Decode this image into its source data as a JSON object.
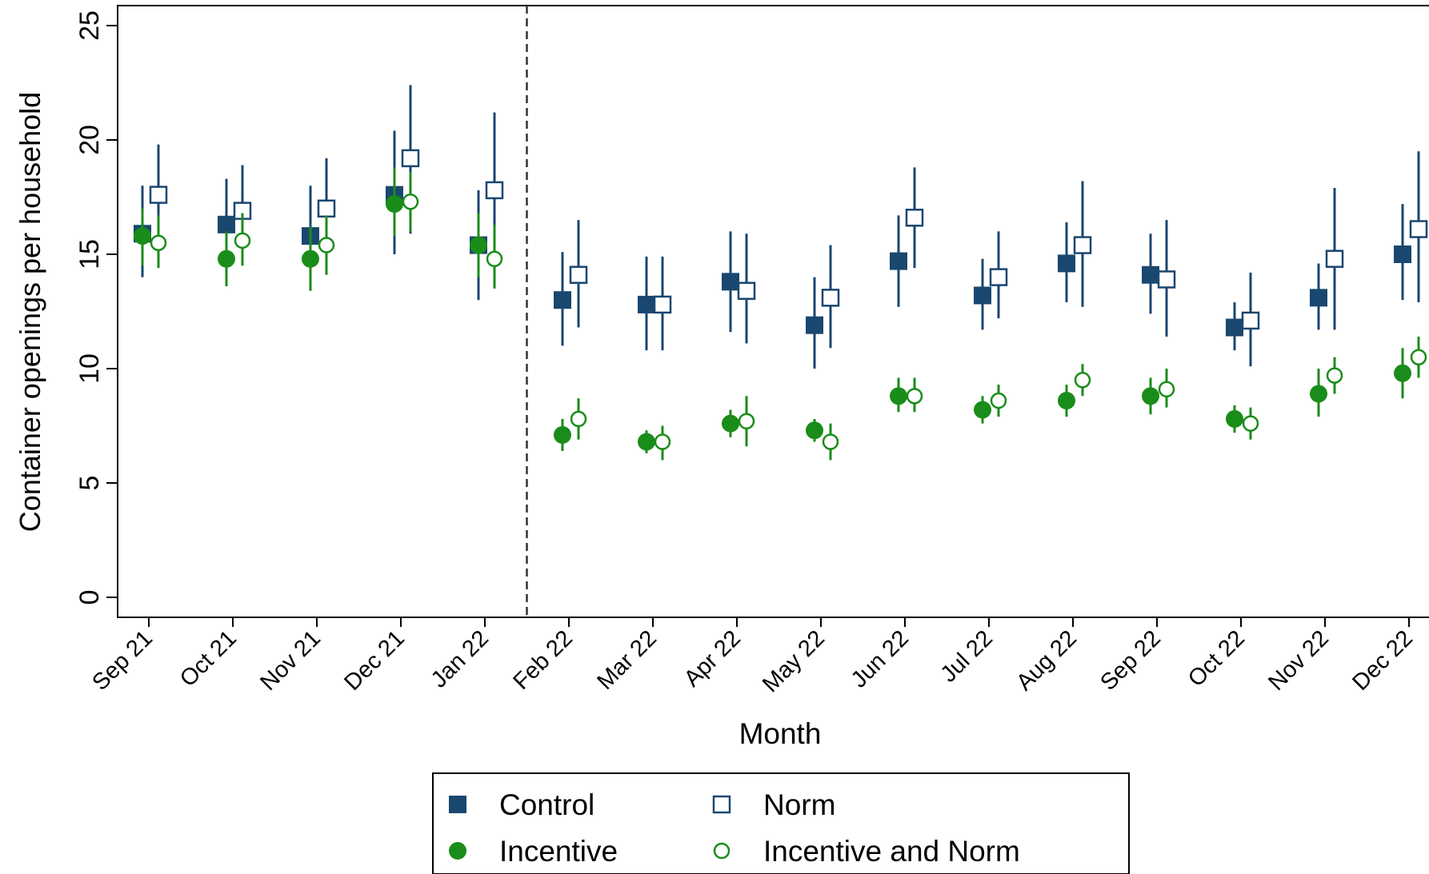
{
  "chart_data": {
    "type": "scatter",
    "title": "",
    "xlabel": "Month",
    "ylabel": "Container openings per household",
    "ylim": [
      0,
      25
    ],
    "yticks": [
      0,
      5,
      10,
      15,
      20,
      25
    ],
    "grid": false,
    "legend_position": "bottom",
    "reference_line": {
      "after_category": "Jan 22",
      "style": "dashed"
    },
    "categories": [
      "Sep 21",
      "Oct 21",
      "Nov 21",
      "Dec 21",
      "Jan 22",
      "Feb 22",
      "Mar 22",
      "Apr 22",
      "May 22",
      "Jun 22",
      "Jul 22",
      "Aug 22",
      "Sep 22",
      "Oct 22",
      "Nov 22",
      "Dec 22"
    ],
    "series": [
      {
        "name": "Control",
        "marker": "filled-square",
        "color": "#1a476f",
        "values": [
          15.9,
          16.3,
          15.8,
          17.6,
          15.4,
          13.0,
          12.8,
          13.8,
          11.9,
          14.7,
          13.2,
          14.6,
          14.1,
          11.8,
          13.1,
          15.0
        ],
        "ci_low": [
          14.0,
          14.2,
          13.5,
          15.0,
          13.0,
          11.0,
          10.8,
          11.6,
          10.0,
          12.7,
          11.7,
          12.9,
          12.4,
          10.8,
          11.7,
          13.0
        ],
        "ci_high": [
          18.0,
          18.3,
          18.0,
          20.4,
          17.8,
          15.1,
          14.9,
          16.0,
          14.0,
          16.7,
          14.8,
          16.4,
          15.9,
          12.9,
          14.6,
          17.2
        ]
      },
      {
        "name": "Norm",
        "marker": "hollow-square",
        "color": "#1a476f",
        "values": [
          17.6,
          16.9,
          17.0,
          19.2,
          17.8,
          14.1,
          12.8,
          13.4,
          13.1,
          16.6,
          14.0,
          15.4,
          13.9,
          12.1,
          14.8,
          16.1
        ],
        "ci_low": [
          15.4,
          14.8,
          14.3,
          15.9,
          13.8,
          11.8,
          10.8,
          11.1,
          10.9,
          14.4,
          12.2,
          12.7,
          11.4,
          10.1,
          11.7,
          12.9
        ],
        "ci_high": [
          19.8,
          18.9,
          19.2,
          22.4,
          21.2,
          16.5,
          14.9,
          15.9,
          15.4,
          18.8,
          16.0,
          18.2,
          16.5,
          14.2,
          17.9,
          19.5
        ]
      },
      {
        "name": "Incentive",
        "marker": "filled-circle",
        "color": "#1a8c1a",
        "values": [
          15.8,
          14.8,
          14.8,
          17.2,
          15.4,
          7.1,
          6.8,
          7.6,
          7.3,
          8.8,
          8.2,
          8.6,
          8.8,
          7.8,
          8.9,
          9.8
        ],
        "ci_low": [
          14.5,
          13.6,
          13.4,
          15.8,
          14.0,
          6.4,
          6.3,
          7.0,
          6.8,
          8.1,
          7.6,
          7.9,
          8.0,
          7.2,
          7.9,
          8.7
        ],
        "ci_high": [
          17.0,
          16.0,
          16.2,
          18.8,
          16.8,
          7.8,
          7.3,
          8.2,
          7.8,
          9.6,
          8.8,
          9.3,
          9.6,
          8.4,
          10.0,
          10.9
        ]
      },
      {
        "name": "Incentive and Norm",
        "marker": "hollow-circle",
        "color": "#1a8c1a",
        "values": [
          15.5,
          15.6,
          15.4,
          17.3,
          14.8,
          7.8,
          6.8,
          7.7,
          6.8,
          8.8,
          8.6,
          9.5,
          9.1,
          7.6,
          9.7,
          10.5
        ],
        "ci_low": [
          14.4,
          14.5,
          14.1,
          16.0,
          13.5,
          6.9,
          6.0,
          6.6,
          6.0,
          8.1,
          7.9,
          8.8,
          8.3,
          6.9,
          8.9,
          9.6
        ],
        "ci_high": [
          16.7,
          16.8,
          16.7,
          18.6,
          16.3,
          8.7,
          7.5,
          8.8,
          7.6,
          9.6,
          9.3,
          10.2,
          10.0,
          8.3,
          10.5,
          11.4
        ]
      }
    ]
  },
  "legend": {
    "items": [
      {
        "label": "Control",
        "marker": "filled-square"
      },
      {
        "label": "Norm",
        "marker": "hollow-square"
      },
      {
        "label": "Incentive",
        "marker": "filled-circle"
      },
      {
        "label": "Incentive and Norm",
        "marker": "hollow-circle"
      }
    ]
  }
}
